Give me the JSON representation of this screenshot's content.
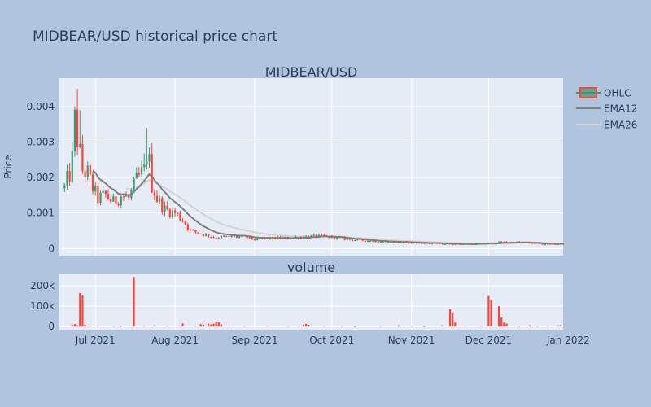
{
  "chart_title": "MIDBEAR/USD historical price chart",
  "chart_data": [
    {
      "type": "candlestick",
      "subplot_title": "MIDBEAR/USD",
      "ylabel": "Price",
      "ylim": [
        -0.0002,
        0.0048
      ],
      "y_ticks": [
        0,
        0.001,
        0.002,
        0.003,
        0.004
      ],
      "y_tick_labels": [
        "0",
        "0.001",
        "0.002",
        "0.003",
        "0.004"
      ],
      "xlim": [
        "2021-06-17",
        "2021-12-30"
      ],
      "x_ticks": [
        "2021-07-01",
        "2021-08-01",
        "2021-09-01",
        "2021-10-01",
        "2021-11-01",
        "2021-12-01",
        "2022-01-01"
      ],
      "x_tick_labels": [
        "Jul 2021",
        "Aug 2021",
        "Sep 2021",
        "Oct 2021",
        "Nov 2021",
        "Dec 2021",
        "Jan 2022"
      ],
      "grid": true,
      "legend_position": "top-right",
      "legend": [
        "OHLC",
        "EMA12",
        "EMA26"
      ],
      "colors": {
        "increasing": "#3d9970",
        "decreasing": "#ff4136",
        "ema12": "#808080",
        "ema26": "#d3d3d3"
      },
      "series": [
        {
          "name": "OHLC",
          "start_date": "2021-06-19",
          "end_date": "2021-12-30",
          "anchors": [
            [
              "2021-06-19",
              0.0017
            ],
            [
              "2021-06-21",
              0.0021
            ],
            [
              "2021-06-22",
              0.0025
            ],
            [
              "2021-06-23",
              0.0036
            ],
            [
              "2021-06-24",
              0.0031
            ],
            [
              "2021-06-26",
              0.0022
            ],
            [
              "2021-06-28",
              0.0021
            ],
            [
              "2021-06-30",
              0.0017
            ],
            [
              "2021-07-02",
              0.0014
            ],
            [
              "2021-07-05",
              0.0015
            ],
            [
              "2021-07-08",
              0.0013
            ],
            [
              "2021-07-11",
              0.0015
            ],
            [
              "2021-07-14",
              0.0014
            ],
            [
              "2021-07-17",
              0.0019
            ],
            [
              "2021-07-20",
              0.0022
            ],
            [
              "2021-07-21",
              0.0027
            ],
            [
              "2021-07-22",
              0.0024
            ],
            [
              "2021-07-23",
              0.0018
            ],
            [
              "2021-07-25",
              0.0014
            ],
            [
              "2021-07-28",
              0.0011
            ],
            [
              "2021-08-01",
              0.001
            ],
            [
              "2021-08-04",
              0.0008
            ],
            [
              "2021-08-07",
              0.0005
            ],
            [
              "2021-08-12",
              0.0004
            ],
            [
              "2021-08-16",
              0.00032
            ],
            [
              "2021-08-22",
              0.00033
            ],
            [
              "2021-08-28",
              0.00032
            ],
            [
              "2021-09-01",
              0.00025
            ],
            [
              "2021-09-06",
              0.00028
            ],
            [
              "2021-09-14",
              0.0003
            ],
            [
              "2021-09-20",
              0.00033
            ],
            [
              "2021-09-26",
              0.00034
            ],
            [
              "2021-10-01",
              0.00032
            ],
            [
              "2021-10-08",
              0.00025
            ],
            [
              "2021-10-15",
              0.00022
            ],
            [
              "2021-10-25",
              0.00018
            ],
            [
              "2021-11-05",
              0.00015
            ],
            [
              "2021-11-15",
              0.00013
            ],
            [
              "2021-11-25",
              0.00012
            ],
            [
              "2021-12-01",
              0.00015
            ],
            [
              "2021-12-08",
              0.00018
            ],
            [
              "2021-12-15",
              0.00017
            ],
            [
              "2021-12-22",
              0.00012
            ],
            [
              "2021-12-30",
              0.00013
            ]
          ]
        },
        {
          "name": "EMA12",
          "start_date": "2021-06-30"
        },
        {
          "name": "EMA26",
          "start_date": "2021-07-13"
        }
      ]
    },
    {
      "type": "bar",
      "subplot_title": "volume",
      "ylim": [
        -15000,
        260000
      ],
      "y_ticks": [
        0,
        100000,
        200000
      ],
      "y_tick_labels": [
        "0",
        "100k",
        "200k"
      ],
      "color": "#ff4136",
      "values": [
        [
          "2021-06-22",
          8000
        ],
        [
          "2021-06-23",
          12000
        ],
        [
          "2021-06-24",
          6000
        ],
        [
          "2021-06-25",
          165000
        ],
        [
          "2021-06-26",
          152000
        ],
        [
          "2021-06-27",
          9000
        ],
        [
          "2021-06-29",
          5000
        ],
        [
          "2021-07-02",
          4000
        ],
        [
          "2021-07-08",
          3000
        ],
        [
          "2021-07-11",
          5000
        ],
        [
          "2021-07-16",
          243000
        ],
        [
          "2021-07-20",
          4000
        ],
        [
          "2021-07-24",
          6000
        ],
        [
          "2021-07-29",
          5000
        ],
        [
          "2021-08-03",
          3000
        ],
        [
          "2021-08-04",
          15000
        ],
        [
          "2021-08-09",
          4000
        ],
        [
          "2021-08-11",
          12000
        ],
        [
          "2021-08-12",
          9000
        ],
        [
          "2021-08-14",
          14000
        ],
        [
          "2021-08-15",
          10000
        ],
        [
          "2021-08-16",
          13000
        ],
        [
          "2021-08-17",
          25000
        ],
        [
          "2021-08-18",
          22000
        ],
        [
          "2021-08-19",
          11000
        ],
        [
          "2021-08-22",
          5000
        ],
        [
          "2021-08-28",
          3000
        ],
        [
          "2021-09-06",
          4000
        ],
        [
          "2021-09-14",
          3000
        ],
        [
          "2021-09-18",
          3000
        ],
        [
          "2021-09-20",
          10000
        ],
        [
          "2021-09-21",
          13000
        ],
        [
          "2021-09-22",
          9000
        ],
        [
          "2021-09-28",
          3000
        ],
        [
          "2021-10-05",
          3000
        ],
        [
          "2021-10-10",
          2000
        ],
        [
          "2021-10-20",
          3000
        ],
        [
          "2021-10-27",
          6000
        ],
        [
          "2021-11-01",
          3000
        ],
        [
          "2021-11-06",
          2000
        ],
        [
          "2021-11-13",
          6000
        ],
        [
          "2021-11-16",
          85000
        ],
        [
          "2021-11-17",
          70000
        ],
        [
          "2021-11-18",
          20000
        ],
        [
          "2021-11-22",
          4000
        ],
        [
          "2021-11-28",
          5000
        ],
        [
          "2021-12-01",
          150000
        ],
        [
          "2021-12-02",
          130000
        ],
        [
          "2021-12-05",
          100000
        ],
        [
          "2021-12-06",
          45000
        ],
        [
          "2021-12-07",
          20000
        ],
        [
          "2021-12-08",
          15000
        ],
        [
          "2021-12-13",
          5000
        ],
        [
          "2021-12-17",
          6000
        ],
        [
          "2021-12-20",
          3000
        ],
        [
          "2021-12-24",
          4000
        ],
        [
          "2021-12-28",
          6000
        ],
        [
          "2021-12-29",
          7000
        ]
      ]
    }
  ]
}
